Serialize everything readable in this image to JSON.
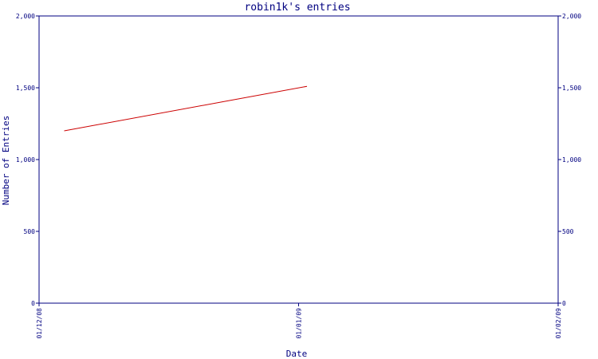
{
  "chart_data": {
    "type": "line",
    "title": "robin1k's entries",
    "xlabel": "Date",
    "ylabel": "Number of Entries",
    "x_ticks": [
      "01/12/08",
      "01/01/09",
      "01/02/09"
    ],
    "x_tick_positions": [
      0,
      31,
      62
    ],
    "ylim": [
      0,
      2000
    ],
    "y_ticks": [
      0,
      500,
      1000,
      1500,
      2000
    ],
    "y_tick_labels": [
      "0",
      "500",
      "1,000",
      "1,500",
      "2,000"
    ],
    "xlim_days": [
      0,
      62
    ],
    "series": [
      {
        "color": "#cc0000",
        "points": [
          {
            "date": "2008-12-04",
            "x": 3,
            "y": 1200
          },
          {
            "date": "2009-01-02",
            "x": 32,
            "y": 1510
          }
        ]
      }
    ],
    "grid": false,
    "right_axis": true
  }
}
